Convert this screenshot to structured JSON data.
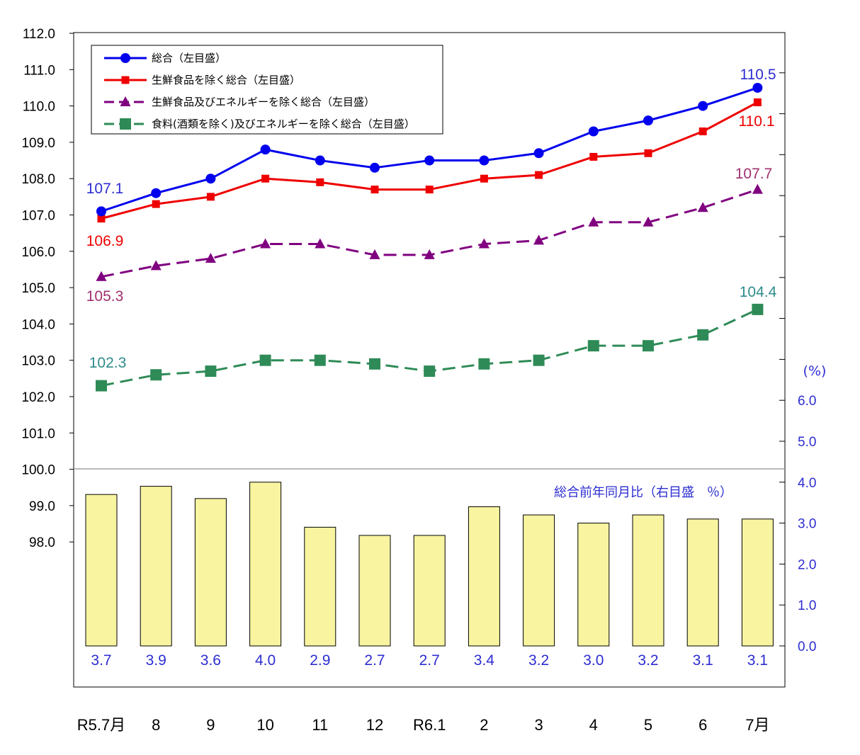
{
  "chart_data": {
    "type": "line",
    "x_categories": [
      "R5.7月",
      "8",
      "9",
      "10",
      "11",
      "12",
      "R6.1",
      "2",
      "3",
      "4",
      "5",
      "6",
      "7月"
    ],
    "left_axis": {
      "ylim": [
        97.0,
        112.0
      ],
      "tick_labels": [
        "112.0",
        "111.0",
        "110.0",
        "109.0",
        "108.0",
        "107.0",
        "106.0",
        "105.0",
        "104.0",
        "103.0",
        "102.0",
        "101.0",
        "100.0",
        "99.0",
        "98.0"
      ]
    },
    "right_axis": {
      "unit": "(%)",
      "ylim": [
        0,
        6.0
      ],
      "tick_labels": [
        "6.0",
        "5.0",
        "4.0",
        "3.0",
        "2.0",
        "1.0",
        "0.0"
      ]
    },
    "series": [
      {
        "name": "総合（左目盛）",
        "color": "#0000ee",
        "marker": "circle",
        "dash": "solid",
        "values": [
          107.1,
          107.6,
          108.0,
          108.8,
          108.5,
          108.3,
          108.5,
          108.5,
          108.7,
          109.3,
          109.6,
          110.0,
          110.5
        ]
      },
      {
        "name": "生鮮食品を除く総合（左目盛）",
        "color": "#ee0000",
        "marker": "square",
        "dash": "solid",
        "values": [
          106.9,
          107.3,
          107.5,
          108.0,
          107.9,
          107.7,
          107.7,
          108.0,
          108.1,
          108.6,
          108.7,
          109.3,
          110.1
        ]
      },
      {
        "name": "生鮮食品及びエネルギーを除く総合（左目盛）",
        "color": "#800080",
        "marker": "triangle",
        "dash": "dashed",
        "values": [
          105.3,
          105.6,
          105.8,
          106.2,
          106.2,
          105.9,
          105.9,
          106.2,
          106.3,
          106.8,
          106.8,
          107.2,
          107.7
        ]
      },
      {
        "name": "食料(酒類を除く)及びエネルギーを除く総合（左目盛）",
        "color": "#2e8b57",
        "marker": "square-large",
        "dash": "dashed",
        "values": [
          102.3,
          102.6,
          102.7,
          103.0,
          103.0,
          102.9,
          102.7,
          102.9,
          103.0,
          103.4,
          103.4,
          103.7,
          104.4
        ]
      }
    ],
    "end_labels": {
      "first": [
        {
          "text": "107.1",
          "color": "#2d2dd2"
        },
        {
          "text": "106.9",
          "color": "#ee0000"
        },
        {
          "text": "105.3",
          "color": "#a0306e"
        },
        {
          "text": "102.3",
          "color": "#2e8b8b"
        }
      ],
      "last": [
        {
          "text": "110.5",
          "color": "#2d2dd2"
        },
        {
          "text": "110.1",
          "color": "#ee0000"
        },
        {
          "text": "107.7",
          "color": "#a0306e"
        },
        {
          "text": "104.4",
          "color": "#2e8b8b"
        }
      ]
    },
    "bars": {
      "name": "総合前年同月比（右目盛　％）",
      "axis": "right",
      "color": "#f8f4a0",
      "values": [
        3.7,
        3.9,
        3.6,
        4.0,
        2.9,
        2.7,
        2.7,
        3.4,
        3.2,
        3.0,
        3.2,
        3.1,
        3.1
      ],
      "labels": [
        "3.7",
        "3.9",
        "3.6",
        "4.0",
        "2.9",
        "2.7",
        "2.7",
        "3.4",
        "3.2",
        "3.0",
        "3.2",
        "3.1",
        "3.1"
      ]
    },
    "legend_position": "top-left",
    "grid": false
  }
}
